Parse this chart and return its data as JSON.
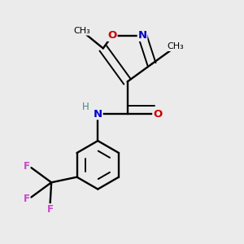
{
  "background_color": "#ebebeb",
  "atom_colors": {
    "C": "#000000",
    "N": "#0000cc",
    "O": "#cc0000",
    "F": "#cc44cc",
    "H": "#448888"
  },
  "figsize": [
    3.0,
    3.0
  ],
  "dpi": 100
}
